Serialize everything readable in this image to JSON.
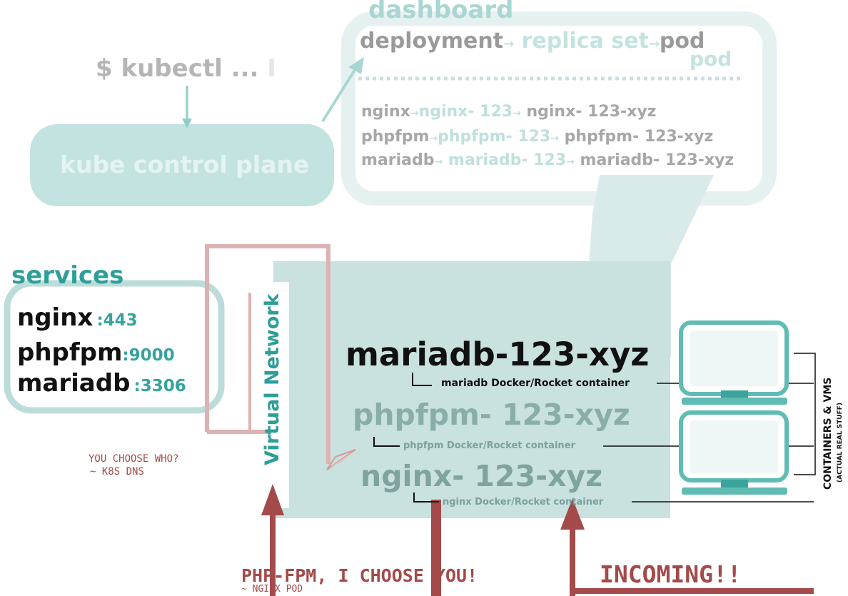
{
  "dashboard": {
    "title": "dashboard",
    "header": {
      "deployment": "deployment",
      "replica_set": "replica set",
      "pod": "pod",
      "pod_shadow": "pod",
      "arrow": "→"
    },
    "rows": [
      {
        "deployment": "nginx",
        "replica_set": "nginx- 123",
        "pod": "nginx- 123-xyz"
      },
      {
        "deployment": "phpfpm",
        "replica_set": "phpfpm- 123",
        "pod": "phpfpm- 123-xyz"
      },
      {
        "deployment": "mariadb",
        "replica_set": "mariadb- 123",
        "pod": "mariadb- 123-xyz"
      }
    ]
  },
  "kubectl": {
    "command": "$ kubectl ...",
    "cursor": "I"
  },
  "control_plane": {
    "label": "kube control plane"
  },
  "services": {
    "title": "services",
    "items": [
      {
        "name": "nginx",
        "port": ":443"
      },
      {
        "name": "phpfpm",
        "port": ":9000"
      },
      {
        "name": "mariadb",
        "port": ":3306"
      }
    ]
  },
  "virtual_network": {
    "label": "Virtual Network"
  },
  "pods": [
    {
      "name": "mariadb-123-xyz",
      "container": "mariadb Docker/Rocket container"
    },
    {
      "name": "phpfpm- 123-xyz",
      "container": "phpfpm Docker/Rocket container"
    },
    {
      "name": "nginx- 123-xyz",
      "container": "nginx Docker/Rocket container"
    }
  ],
  "machines": {
    "label": "CONTAINERS & VMS",
    "sub": "(ACTUAL REAL STUFF)"
  },
  "notes": {
    "dns_question": "YOU CHOOSE WHO?",
    "dns_answer": "~ K8S DNS",
    "php_choose": "PHP-FPM, I CHOOSE YOU!",
    "php_source": "~ NGINX POD",
    "incoming": "INCOMING!!"
  },
  "colors": {
    "teal": "#2e9e98",
    "teal_light": "#c6e2e0",
    "red": "#a44a4a",
    "red_light": "#ddb2b2"
  }
}
